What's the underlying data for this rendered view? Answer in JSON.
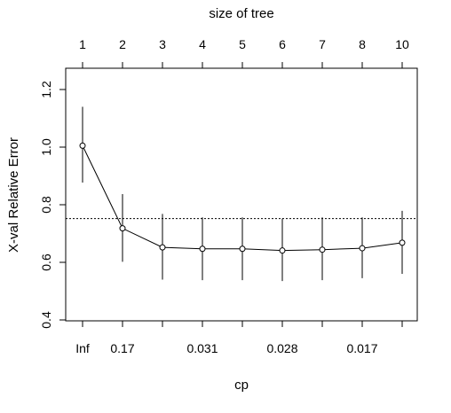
{
  "chart_data": {
    "type": "line",
    "title": "",
    "top_axis_label": "size of tree",
    "xlabel": "cp",
    "ylabel": "X-val Relative Error",
    "ylim": [
      0.4,
      1.2
    ],
    "y_ticks": [
      "0.4",
      "0.6",
      "0.8",
      "1.0",
      "1.2"
    ],
    "y_tick_values": [
      0.4,
      0.6,
      0.8,
      1.0,
      1.2
    ],
    "tree_sizes": [
      "1",
      "2",
      "3",
      "4",
      "5",
      "6",
      "7",
      "8",
      "10"
    ],
    "cp_labels": [
      "Inf",
      "0.17",
      "",
      "0.031",
      "",
      "0.028",
      "",
      "0.017",
      ""
    ],
    "series": [
      {
        "values": [
          1.005,
          0.718,
          0.652,
          0.647,
          0.647,
          0.641,
          0.644,
          0.649,
          0.668
        ],
        "upper": [
          1.14,
          0.837,
          0.768,
          0.756,
          0.756,
          0.752,
          0.756,
          0.756,
          0.779
        ],
        "lower": [
          0.877,
          0.602,
          0.54,
          0.538,
          0.538,
          0.535,
          0.538,
          0.545,
          0.56
        ]
      }
    ],
    "reference_line": 0.752,
    "grid": false,
    "legend": "none"
  }
}
